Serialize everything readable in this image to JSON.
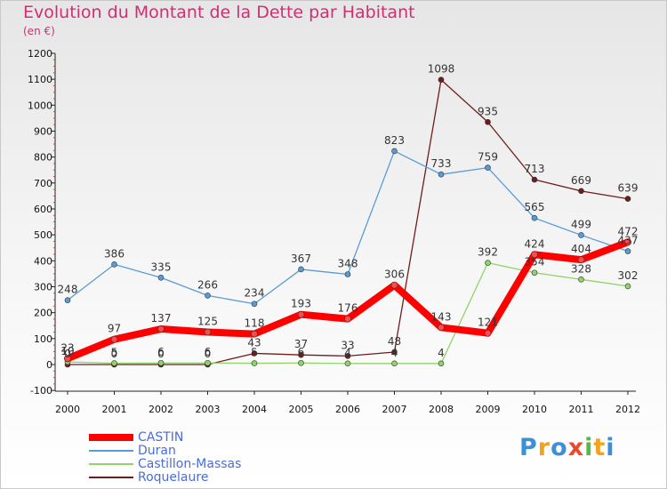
{
  "chart_data": {
    "type": "line",
    "title": "Evolution du Montant de la Dette par Habitant",
    "subtitle": "(en €)",
    "xlabel": "",
    "ylabel": "",
    "x": [
      "2000",
      "2001",
      "2002",
      "2003",
      "2004",
      "2005",
      "2006",
      "2007",
      "2008",
      "2009",
      "2010",
      "2011",
      "2012"
    ],
    "yticks": [
      -100,
      0,
      100,
      200,
      300,
      400,
      500,
      600,
      700,
      800,
      900,
      1000,
      1100,
      1200
    ],
    "ylim": [
      -100,
      1200
    ],
    "grid": false,
    "legend_position": "bottom-left",
    "series": [
      {
        "name": "CASTIN",
        "color": "#ff0000",
        "values": [
          23,
          97,
          137,
          125,
          118,
          193,
          176,
          306,
          143,
          121,
          424,
          404,
          472
        ],
        "labels": [
          "23",
          "97",
          "137",
          "125",
          "118",
          "193",
          "176",
          "306",
          "143",
          "121",
          "424",
          "404",
          "472"
        ]
      },
      {
        "name": "Duran",
        "color": "#5b9bd5",
        "values": [
          248,
          386,
          335,
          266,
          234,
          367,
          348,
          823,
          733,
          759,
          565,
          499,
          437
        ],
        "labels": [
          "248",
          "386",
          "335",
          "266",
          "234",
          "367",
          "348",
          "823",
          "733",
          "759",
          "565",
          "499",
          "437"
        ]
      },
      {
        "name": "Castillon-Massas",
        "color": "#8fd36a",
        "values": [
          10,
          5,
          6,
          6,
          5,
          6,
          4,
          4,
          4,
          392,
          354,
          328,
          302
        ],
        "labels": [
          "10",
          "5",
          "6",
          "6",
          "5",
          "6",
          "4",
          "4",
          "4",
          "392",
          "354",
          "328",
          "302"
        ]
      },
      {
        "name": "Roquelaure",
        "color": "#6b1e1e",
        "values": [
          0,
          0,
          0,
          0,
          43,
          37,
          33,
          48,
          1098,
          935,
          713,
          669,
          639
        ],
        "labels": [
          "0",
          "0",
          "0",
          "0",
          "43",
          "37",
          "33",
          "48",
          "1098",
          "935",
          "713",
          "669",
          "639"
        ]
      }
    ]
  },
  "logo": {
    "letters": [
      {
        "char": "P",
        "color": "#3d8fd6"
      },
      {
        "char": "r",
        "color": "#f3a21b"
      },
      {
        "char": "o",
        "color": "#3d8fd6"
      },
      {
        "char": "x",
        "color": "#e84c2c"
      },
      {
        "char": "i",
        "color": "#5ab54b"
      },
      {
        "char": "t",
        "color": "#f3a21b"
      },
      {
        "char": "i",
        "color": "#3d8fd6"
      }
    ]
  }
}
